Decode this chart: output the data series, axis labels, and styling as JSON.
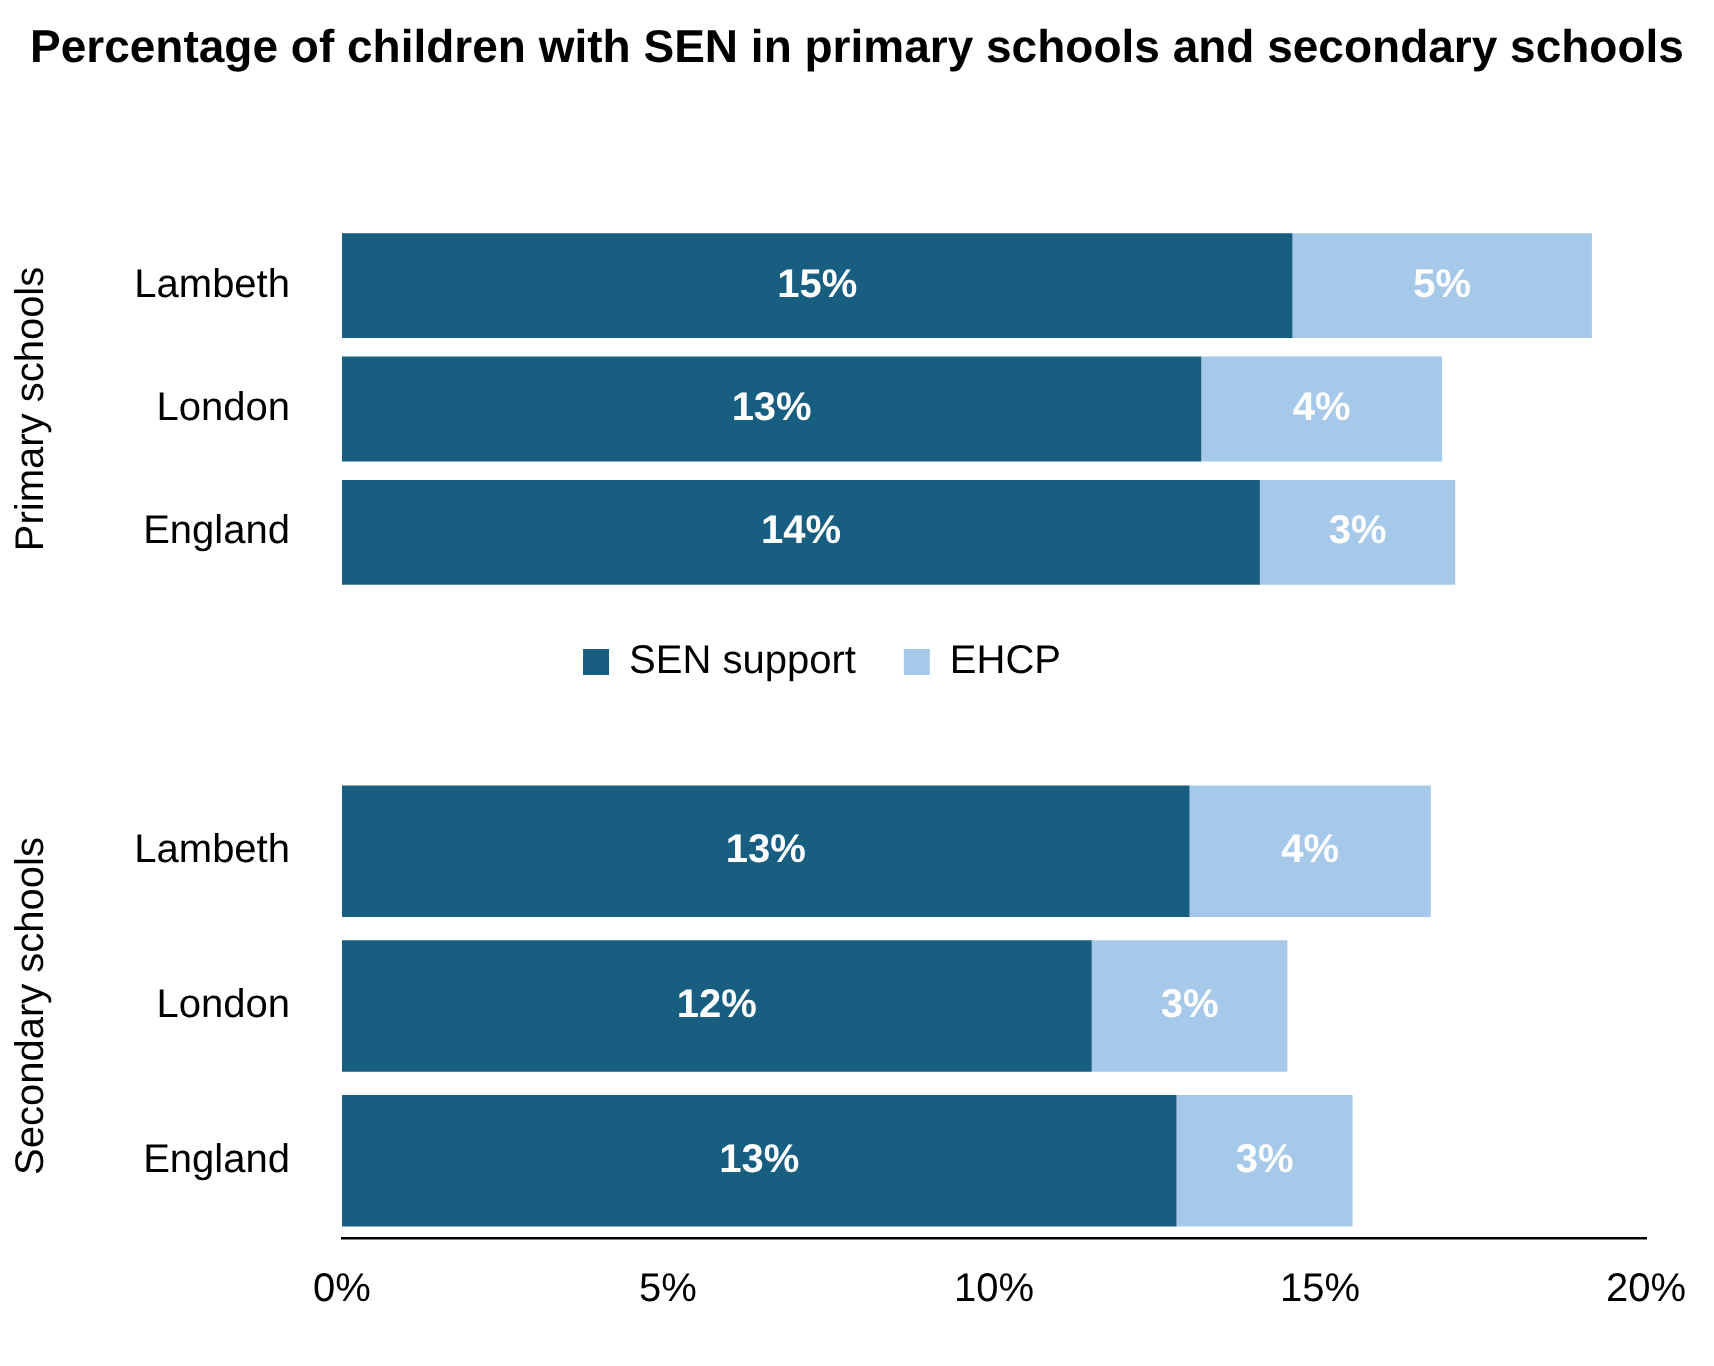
{
  "chart_data": [
    {
      "type": "bar",
      "title": "Percentage of children with SEN in primary schools and secondary schools",
      "ylabel": "Primary schools",
      "orientation": "horizontal",
      "stacked": true,
      "categories": [
        "Lambeth",
        "London",
        "England"
      ],
      "series": [
        {
          "name": "SEN support",
          "color": "#175e80",
          "values": [
            14.6,
            13.2,
            14.1
          ],
          "value_labels": [
            "15%",
            "13%",
            "14%"
          ]
        },
        {
          "name": "EHCP",
          "color": "#a6c9ea",
          "values": [
            4.6,
            3.7,
            3.0
          ],
          "value_labels": [
            "5%",
            "4%",
            "3%"
          ]
        }
      ],
      "xlim": [
        0,
        20
      ],
      "tick_labels": "y",
      "legend": "bottom"
    },
    {
      "type": "bar",
      "ylabel": "Secondary schools",
      "orientation": "horizontal",
      "stacked": true,
      "categories": [
        "Lambeth",
        "London",
        "England"
      ],
      "series": [
        {
          "color": "#175e80",
          "values": [
            13.0,
            11.5,
            12.8
          ],
          "value_labels": [
            "13%",
            "12%",
            "13%"
          ]
        },
        {
          "color": "#a6c9ea",
          "values": [
            3.7,
            3.0,
            2.7
          ],
          "value_labels": [
            "4%",
            "3%",
            "3%"
          ]
        }
      ],
      "xlim": [
        0,
        20
      ],
      "xticks": [
        {
          "value": 0,
          "label": "0%"
        },
        {
          "value": 5,
          "label": "5%"
        },
        {
          "value": 10,
          "label": "10%"
        },
        {
          "value": 15,
          "label": "15%"
        },
        {
          "value": 20,
          "label": "20%"
        }
      ]
    }
  ]
}
